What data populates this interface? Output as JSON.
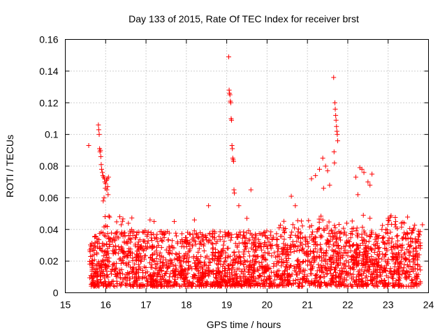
{
  "chart_data": {
    "type": "scatter",
    "title": "Day 133 of 2015, Rate Of TEC Index for receiver brst",
    "xlabel": "GPS time / hours",
    "ylabel": "ROTI / TECUs",
    "xlim": [
      15,
      24
    ],
    "ylim": [
      0,
      0.16
    ],
    "xticks": [
      15,
      16,
      17,
      18,
      19,
      20,
      21,
      22,
      23,
      24
    ],
    "xtick_labels": [
      "15",
      "16",
      "17",
      "18",
      "19",
      "20",
      "21",
      "22",
      "23",
      "24"
    ],
    "yticks": [
      0,
      0.02,
      0.04,
      0.06,
      0.08,
      0.1,
      0.12,
      0.14,
      0.16
    ],
    "ytick_labels": [
      "0",
      "0.02",
      "0.04",
      "0.06",
      "0.08",
      "0.1",
      "0.12",
      "0.14",
      "0.16"
    ],
    "grid": true,
    "marker": "plus",
    "color": "#ff0000",
    "series": [
      {
        "name": "ROTI",
        "background_band": {
          "x_range": [
            15.6,
            23.8
          ],
          "y_center": 0.016,
          "y_spread": 0.012,
          "count": 2600
        },
        "points": [
          [
            15.58,
            0.093
          ],
          [
            15.82,
            0.106
          ],
          [
            15.83,
            0.103
          ],
          [
            15.84,
            0.1
          ],
          [
            15.85,
            0.091
          ],
          [
            15.86,
            0.089
          ],
          [
            15.87,
            0.09
          ],
          [
            15.88,
            0.086
          ],
          [
            15.89,
            0.081
          ],
          [
            15.9,
            0.078
          ],
          [
            15.92,
            0.076
          ],
          [
            15.93,
            0.074
          ],
          [
            15.95,
            0.073
          ],
          [
            15.97,
            0.072
          ],
          [
            15.98,
            0.07
          ],
          [
            16.0,
            0.069
          ],
          [
            16.02,
            0.071
          ],
          [
            16.03,
            0.065
          ],
          [
            16.05,
            0.067
          ],
          [
            16.06,
            0.062
          ],
          [
            15.94,
            0.058
          ],
          [
            15.96,
            0.06
          ],
          [
            16.04,
            0.072
          ],
          [
            15.99,
            0.066
          ],
          [
            16.07,
            0.073
          ],
          [
            19.05,
            0.149
          ],
          [
            19.06,
            0.128
          ],
          [
            19.07,
            0.126
          ],
          [
            19.08,
            0.125
          ],
          [
            19.09,
            0.121
          ],
          [
            19.1,
            0.12
          ],
          [
            19.11,
            0.11
          ],
          [
            19.12,
            0.109
          ],
          [
            19.13,
            0.093
          ],
          [
            19.14,
            0.091
          ],
          [
            19.15,
            0.085
          ],
          [
            19.16,
            0.084
          ],
          [
            19.17,
            0.083
          ],
          [
            19.18,
            0.065
          ],
          [
            19.19,
            0.063
          ],
          [
            19.6,
            0.065
          ],
          [
            21.65,
            0.136
          ],
          [
            21.68,
            0.12
          ],
          [
            21.69,
            0.116
          ],
          [
            21.7,
            0.112
          ],
          [
            21.71,
            0.109
          ],
          [
            21.72,
            0.105
          ],
          [
            21.73,
            0.102
          ],
          [
            21.74,
            0.1
          ],
          [
            21.75,
            0.096
          ],
          [
            21.66,
            0.089
          ],
          [
            21.67,
            0.082
          ],
          [
            21.38,
            0.085
          ],
          [
            21.45,
            0.08
          ],
          [
            21.5,
            0.077
          ],
          [
            21.3,
            0.078
          ],
          [
            21.2,
            0.074
          ],
          [
            21.1,
            0.072
          ],
          [
            21.55,
            0.068
          ],
          [
            21.4,
            0.066
          ],
          [
            22.3,
            0.079
          ],
          [
            22.35,
            0.078
          ],
          [
            22.4,
            0.076
          ],
          [
            22.6,
            0.075
          ],
          [
            22.2,
            0.073
          ],
          [
            22.5,
            0.07
          ],
          [
            22.55,
            0.068
          ],
          [
            22.25,
            0.062
          ],
          [
            16.35,
            0.048
          ],
          [
            17.1,
            0.046
          ],
          [
            17.2,
            0.045
          ],
          [
            17.7,
            0.045
          ],
          [
            18.2,
            0.046
          ],
          [
            18.55,
            0.055
          ],
          [
            19.3,
            0.055
          ],
          [
            19.5,
            0.047
          ],
          [
            20.6,
            0.061
          ],
          [
            20.7,
            0.055
          ],
          [
            23.4,
            0.044
          ],
          [
            23.85,
            0.043
          ],
          [
            20.3,
            0.041
          ],
          [
            23.0,
            0.047
          ]
        ]
      }
    ]
  }
}
